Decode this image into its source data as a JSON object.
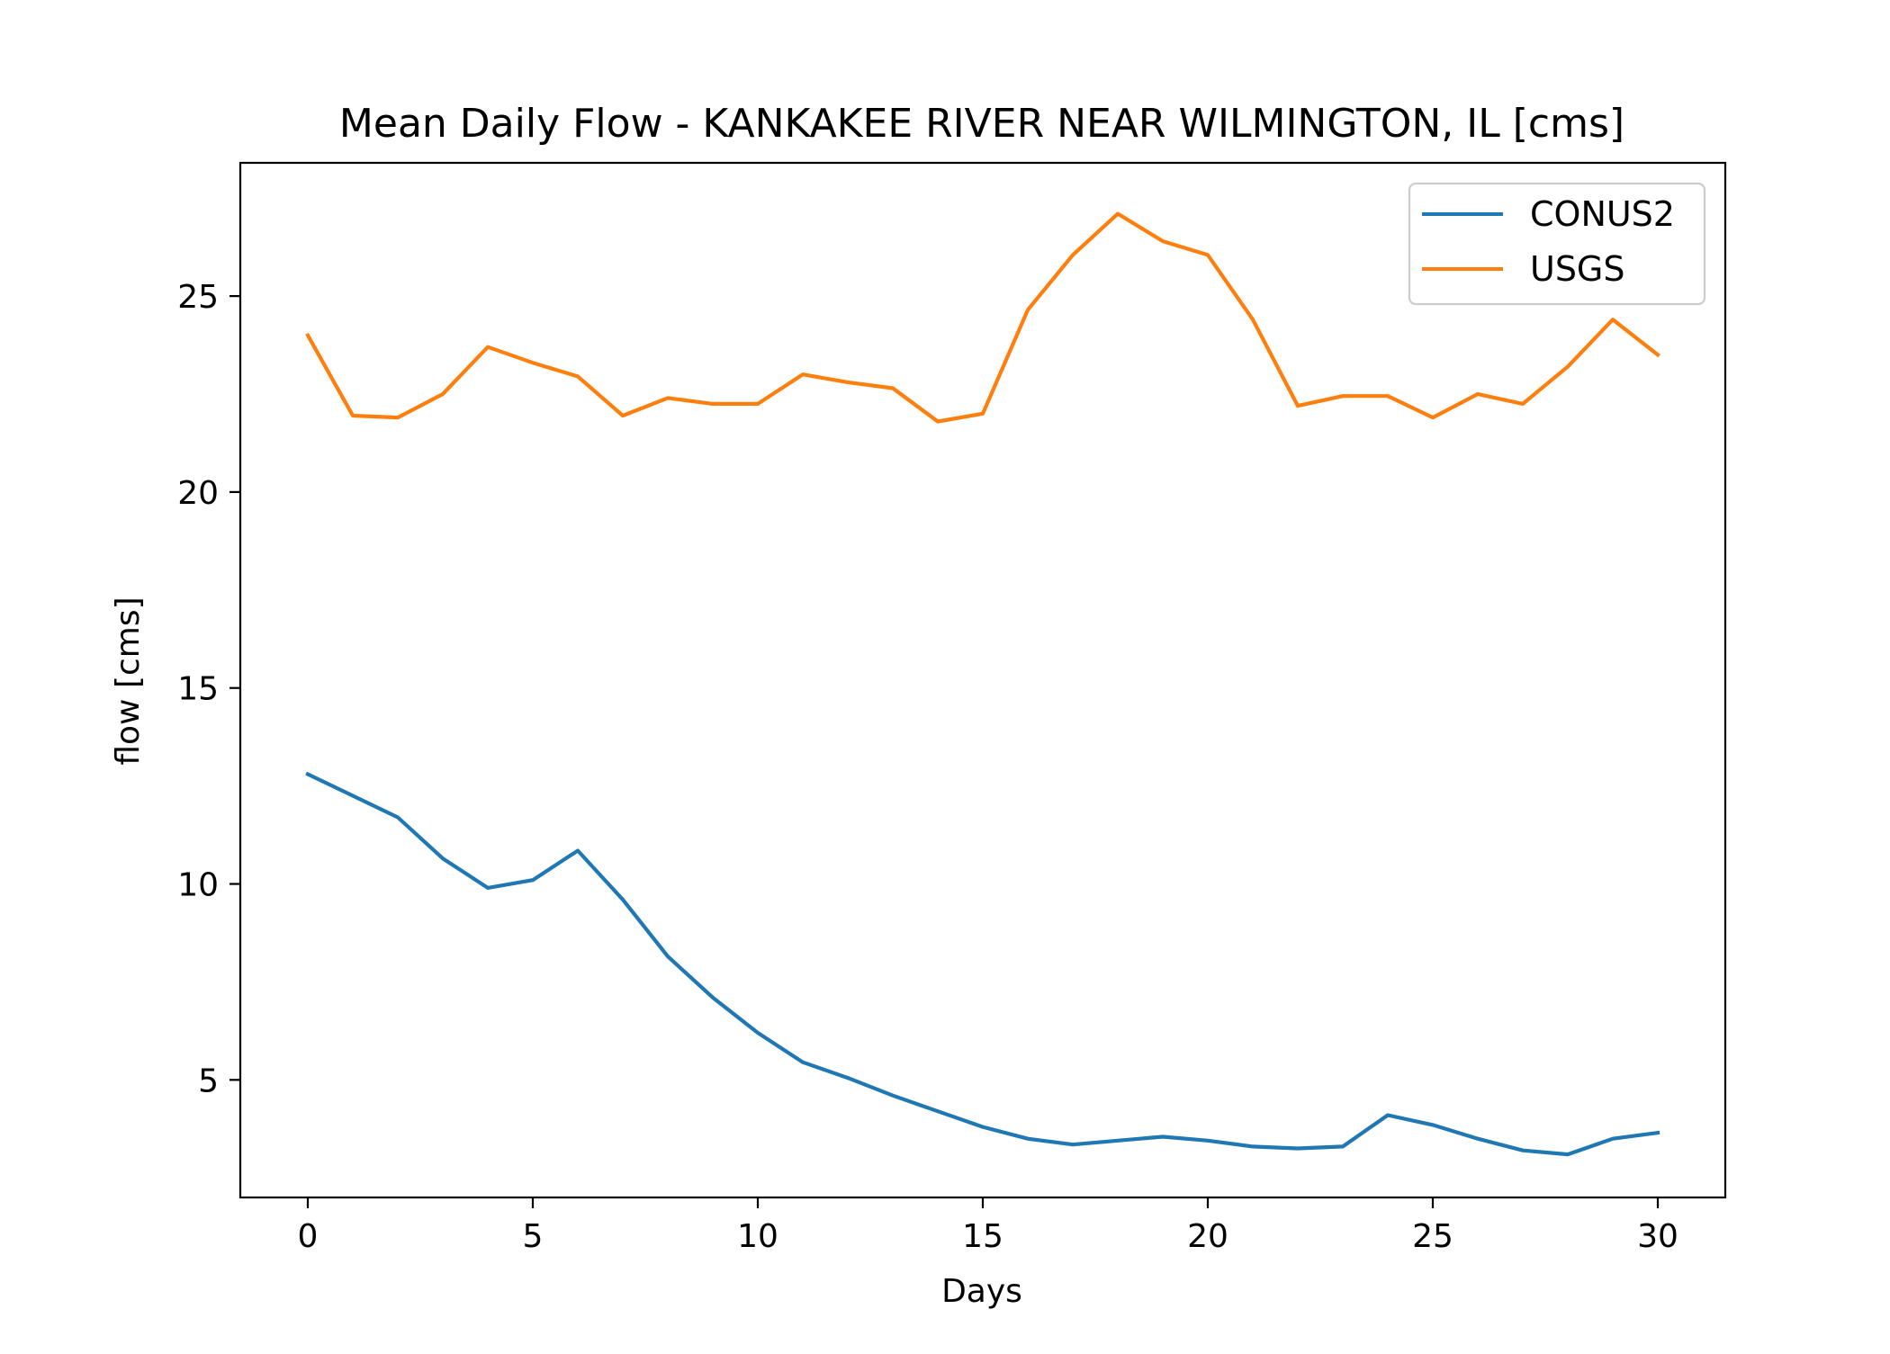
{
  "chart_data": {
    "type": "line",
    "title": "Mean Daily Flow - KANKAKEE RIVER NEAR WILMINGTON, IL [cms]",
    "xlabel": "Days",
    "ylabel": "flow [cms]",
    "xlim": [
      -1.5,
      31.5
    ],
    "ylim": [
      2.0,
      28.4
    ],
    "xticks": [
      0,
      5,
      10,
      15,
      20,
      25,
      30
    ],
    "yticks": [
      5,
      10,
      15,
      20,
      25
    ],
    "grid": false,
    "legend_position": "top-right",
    "x": [
      0,
      1,
      2,
      3,
      4,
      5,
      6,
      7,
      8,
      9,
      10,
      11,
      12,
      13,
      14,
      15,
      16,
      17,
      18,
      19,
      20,
      21,
      22,
      23,
      24,
      25,
      26,
      27,
      28,
      29,
      30
    ],
    "series": [
      {
        "name": "CONUS2",
        "color": "#1f77b4",
        "values": [
          12.8,
          12.25,
          11.7,
          10.65,
          9.9,
          10.1,
          10.85,
          9.6,
          8.15,
          7.1,
          6.2,
          5.45,
          5.05,
          4.6,
          4.2,
          3.8,
          3.5,
          3.35,
          3.45,
          3.55,
          3.45,
          3.3,
          3.25,
          3.3,
          4.1,
          3.85,
          3.5,
          3.2,
          3.1,
          3.5,
          3.65
        ]
      },
      {
        "name": "USGS",
        "color": "#ff7f0e",
        "values": [
          24.0,
          21.95,
          21.9,
          22.5,
          23.7,
          23.3,
          22.95,
          21.95,
          22.4,
          22.25,
          22.25,
          23.0,
          22.8,
          22.65,
          21.8,
          22.0,
          24.65,
          26.05,
          27.1,
          26.4,
          26.05,
          24.4,
          22.2,
          22.45,
          22.45,
          21.9,
          22.5,
          22.25,
          23.2,
          24.4,
          23.5
        ]
      }
    ]
  }
}
